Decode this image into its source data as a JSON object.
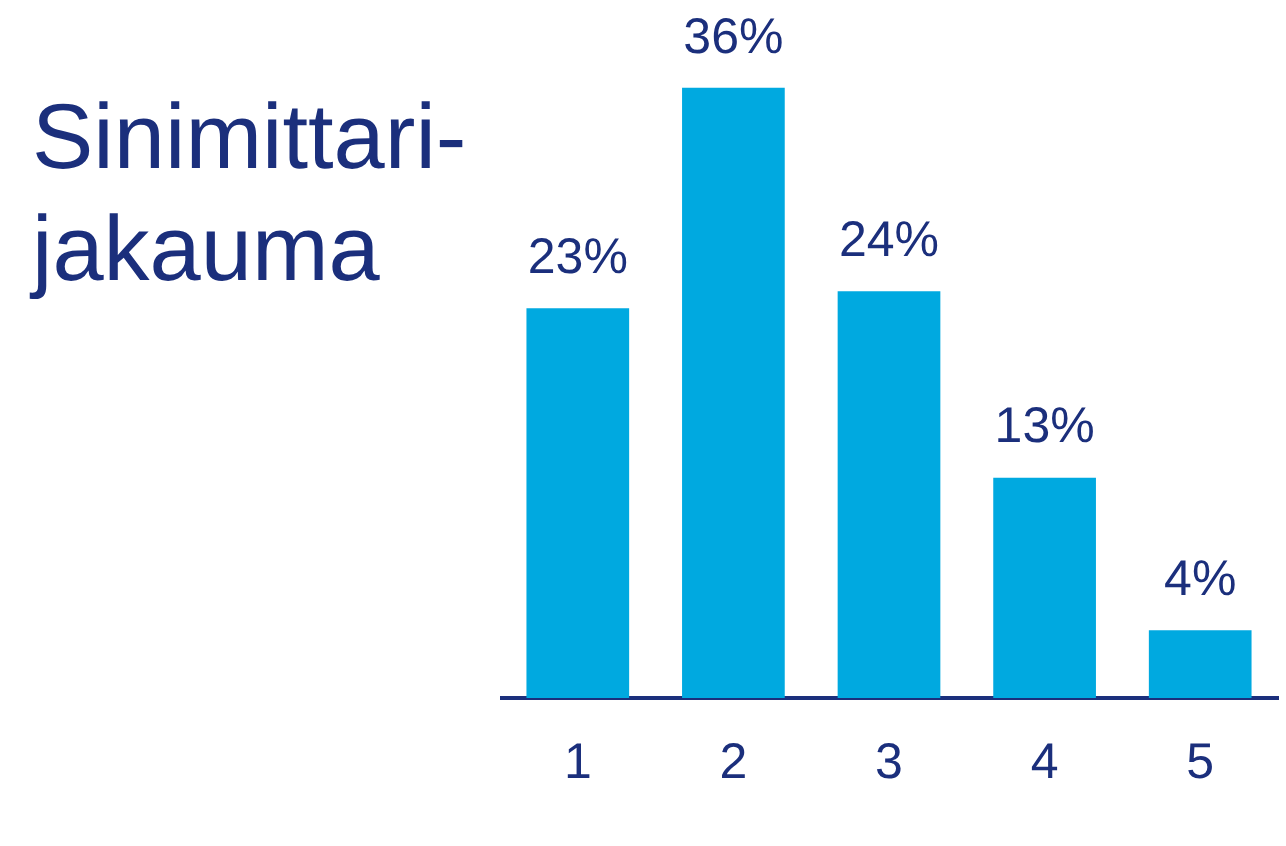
{
  "chart_data": {
    "type": "bar",
    "title": "Sinimittari-jakauma",
    "categories": [
      "1",
      "2",
      "3",
      "4",
      "5"
    ],
    "values": [
      23,
      36,
      24,
      13,
      4
    ],
    "value_labels": [
      "23%",
      "36%",
      "24%",
      "13%",
      "4%"
    ],
    "color": "#00a9e0",
    "tick_labels": "x",
    "grid": false,
    "legend": false
  }
}
